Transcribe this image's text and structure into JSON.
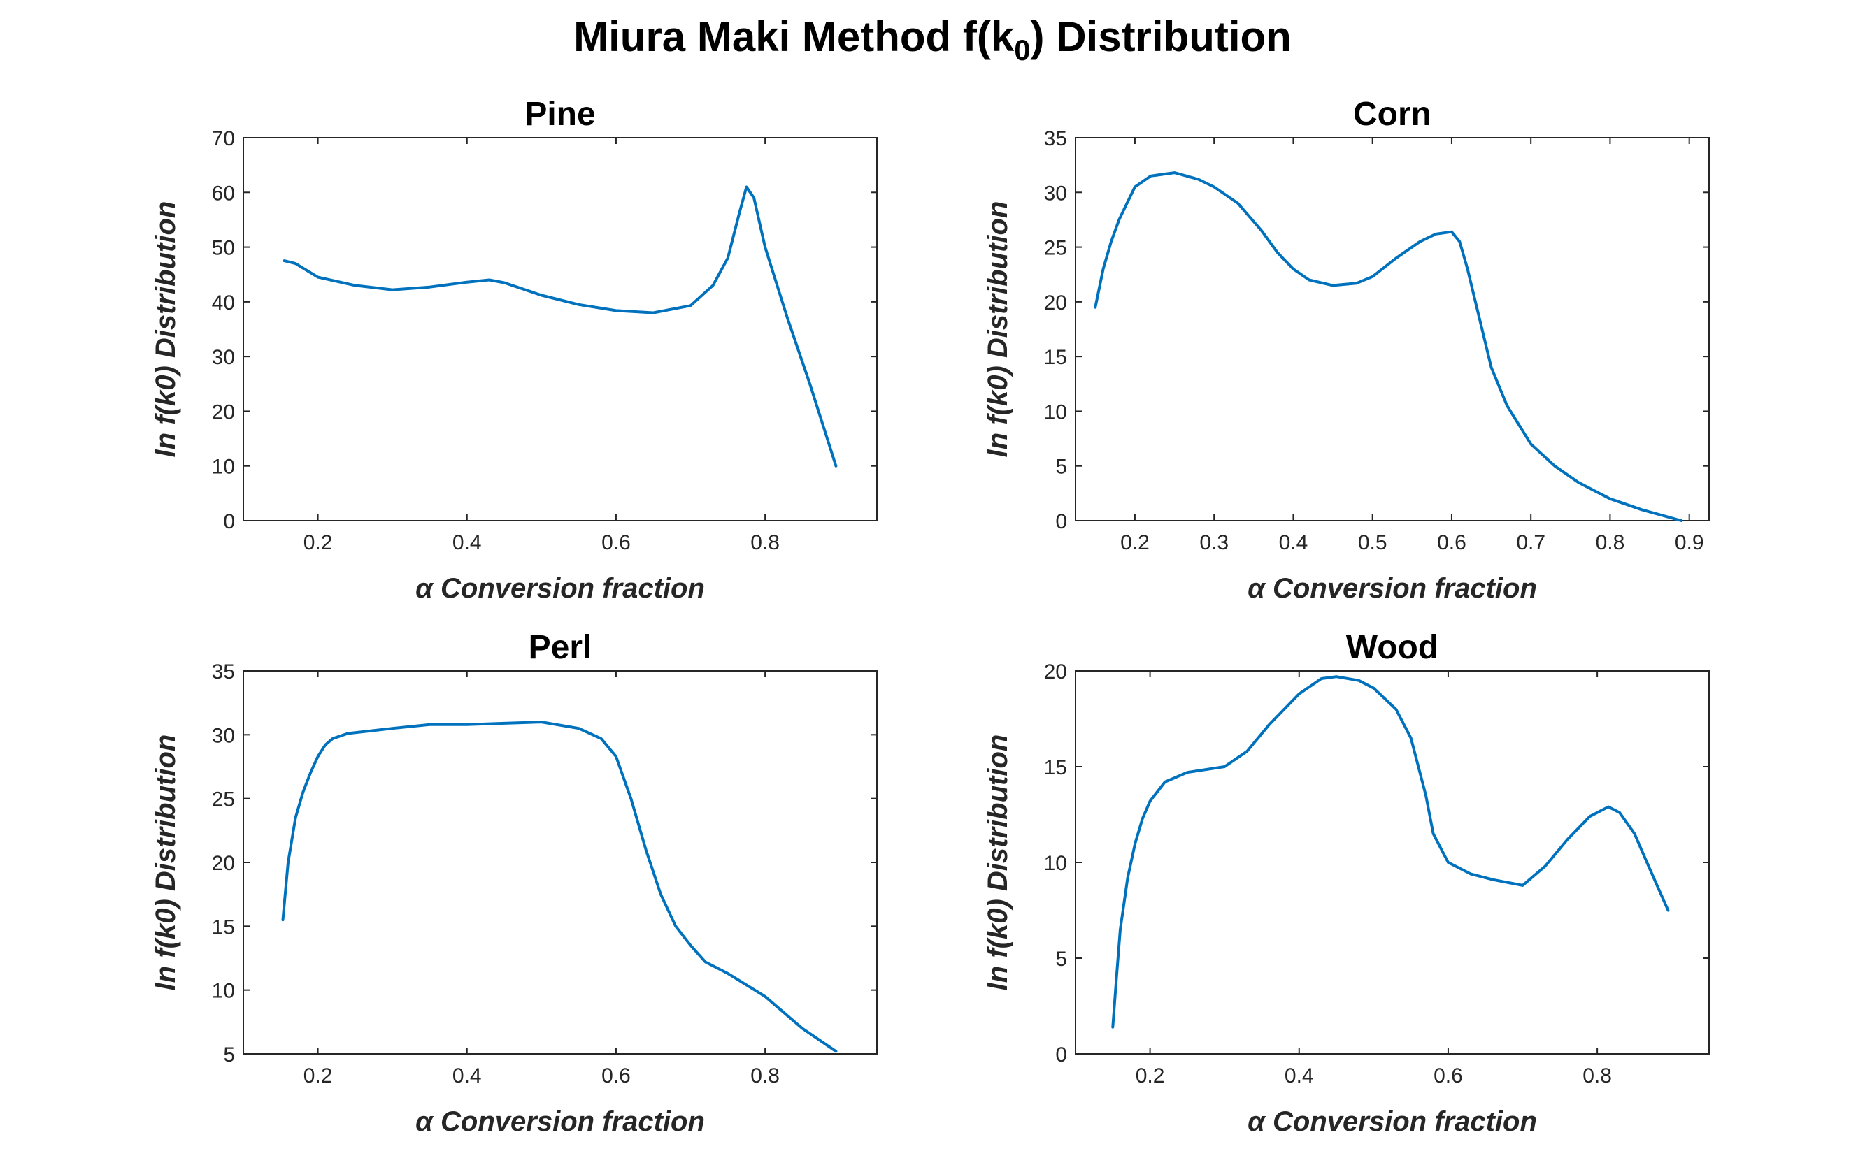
{
  "title": {
    "text": "Miura Maki Method f(k",
    "sub": "0",
    "tail": ") Distribution"
  },
  "colors": {
    "line": "#0072BD",
    "axis": "#262626"
  },
  "chart_data": [
    {
      "type": "line",
      "title": "Pine",
      "xlabel": "α  Conversion fraction",
      "ylabel": "ln f(k0)  Distribution",
      "xlim": [
        0.1,
        0.95
      ],
      "ylim": [
        0,
        70
      ],
      "xticks": [
        0.2,
        0.4,
        0.6,
        0.8
      ],
      "yticks": [
        0,
        10,
        20,
        30,
        40,
        50,
        60,
        70
      ],
      "series": [
        {
          "x": [
            0.155,
            0.17,
            0.2,
            0.25,
            0.3,
            0.35,
            0.4,
            0.43,
            0.45,
            0.5,
            0.55,
            0.6,
            0.65,
            0.7,
            0.73,
            0.75,
            0.765,
            0.775,
            0.785,
            0.8,
            0.83,
            0.86,
            0.895
          ],
          "y": [
            47.5,
            47,
            44.5,
            43,
            42.2,
            42.7,
            43.6,
            44,
            43.5,
            41.2,
            39.5,
            38.4,
            38,
            39.3,
            43,
            48,
            56,
            61,
            59,
            50,
            37,
            25,
            10
          ]
        }
      ]
    },
    {
      "type": "line",
      "title": "Corn",
      "xlabel": "α  Conversion fraction",
      "ylabel": "ln f(k0)  Distribution",
      "xlim": [
        0.125,
        0.925
      ],
      "ylim": [
        0,
        35
      ],
      "xticks": [
        0.2,
        0.3,
        0.4,
        0.5,
        0.6,
        0.7,
        0.8,
        0.9
      ],
      "yticks": [
        0,
        5,
        10,
        15,
        20,
        25,
        30,
        35
      ],
      "series": [
        {
          "x": [
            0.15,
            0.16,
            0.17,
            0.18,
            0.19,
            0.2,
            0.22,
            0.25,
            0.28,
            0.3,
            0.33,
            0.36,
            0.38,
            0.4,
            0.42,
            0.45,
            0.48,
            0.5,
            0.53,
            0.56,
            0.58,
            0.6,
            0.61,
            0.62,
            0.63,
            0.65,
            0.67,
            0.7,
            0.73,
            0.76,
            0.8,
            0.84,
            0.89
          ],
          "y": [
            19.5,
            23,
            25.5,
            27.5,
            29,
            30.5,
            31.5,
            31.8,
            31.2,
            30.5,
            29,
            26.5,
            24.5,
            23,
            22,
            21.5,
            21.7,
            22.3,
            24,
            25.5,
            26.2,
            26.4,
            25.5,
            23,
            20,
            14,
            10.5,
            7,
            5,
            3.5,
            2,
            1,
            0
          ]
        }
      ]
    },
    {
      "type": "line",
      "title": "Perl",
      "xlabel": "α  Conversion fraction",
      "ylabel": "ln f(k0)  Distribution",
      "xlim": [
        0.1,
        0.95
      ],
      "ylim": [
        5,
        35
      ],
      "xticks": [
        0.2,
        0.4,
        0.6,
        0.8
      ],
      "yticks": [
        5,
        10,
        15,
        20,
        25,
        30,
        35
      ],
      "series": [
        {
          "x": [
            0.153,
            0.16,
            0.17,
            0.18,
            0.19,
            0.2,
            0.21,
            0.22,
            0.24,
            0.27,
            0.3,
            0.35,
            0.4,
            0.45,
            0.5,
            0.55,
            0.58,
            0.6,
            0.62,
            0.64,
            0.66,
            0.68,
            0.7,
            0.72,
            0.75,
            0.8,
            0.85,
            0.895
          ],
          "y": [
            15.5,
            20,
            23.5,
            25.5,
            27,
            28.3,
            29.2,
            29.7,
            30.1,
            30.3,
            30.5,
            30.8,
            30.8,
            30.9,
            31,
            30.5,
            29.7,
            28.3,
            25,
            21,
            17.5,
            15,
            13.5,
            12.2,
            11.3,
            9.5,
            7,
            5.2
          ]
        }
      ]
    },
    {
      "type": "line",
      "title": "Wood",
      "xlabel": "α  Conversion fraction",
      "ylabel": "ln f(k0)  Distribution",
      "xlim": [
        0.1,
        0.95
      ],
      "ylim": [
        0,
        20
      ],
      "xticks": [
        0.2,
        0.4,
        0.6,
        0.8
      ],
      "yticks": [
        0,
        5,
        10,
        15,
        20
      ],
      "series": [
        {
          "x": [
            0.15,
            0.155,
            0.16,
            0.17,
            0.18,
            0.19,
            0.2,
            0.22,
            0.25,
            0.3,
            0.33,
            0.36,
            0.4,
            0.43,
            0.45,
            0.48,
            0.5,
            0.53,
            0.55,
            0.57,
            0.58,
            0.6,
            0.63,
            0.66,
            0.7,
            0.73,
            0.76,
            0.79,
            0.815,
            0.83,
            0.85,
            0.87,
            0.895
          ],
          "y": [
            1.4,
            4,
            6.5,
            9.2,
            11,
            12.3,
            13.2,
            14.2,
            14.7,
            15,
            15.8,
            17.2,
            18.8,
            19.6,
            19.7,
            19.5,
            19.1,
            18,
            16.5,
            13.5,
            11.5,
            10,
            9.4,
            9.1,
            8.8,
            9.8,
            11.2,
            12.4,
            12.9,
            12.6,
            11.5,
            9.7,
            7.5
          ]
        }
      ]
    }
  ]
}
